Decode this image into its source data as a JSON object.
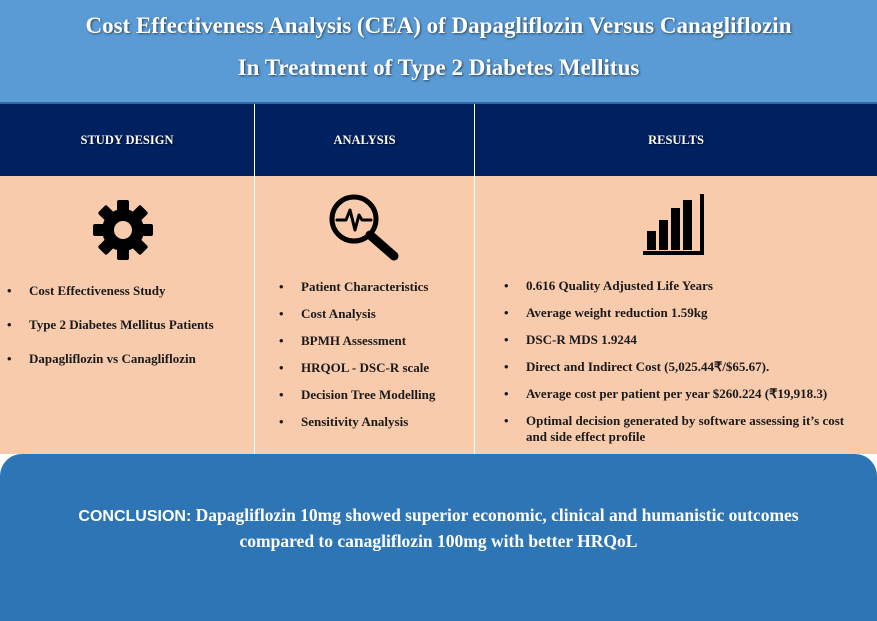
{
  "title": {
    "line1": "Cost Effectiveness Analysis (CEA) of Dapagliflozin Versus Canagliflozin",
    "line2": "In Treatment of Type 2 Diabetes Mellitus"
  },
  "columns": [
    {
      "header": "STUDY DESIGN",
      "icon": "gear-icon",
      "bullet": "•",
      "items": [
        "Cost Effectiveness Study",
        "Type 2 Diabetes Mellitus Patients",
        "Dapagliflozin vs Canagliflozin"
      ]
    },
    {
      "header": "ANALYSIS",
      "icon": "magnifier-pulse-icon",
      "bullet": "•",
      "items": [
        "Patient Characteristics",
        "Cost Analysis",
        "BPMH Assessment",
        "HRQOL - DSC-R scale",
        "Decision Tree Modelling",
        "Sensitivity Analysis"
      ]
    },
    {
      "header": "RESULTS",
      "icon": "bar-chart-icon",
      "bullet": "•",
      "items": [
        "0.616 Quality Adjusted Life Years",
        "Average weight reduction 1.59kg",
        "DSC-R MDS 1.9244",
        "Direct and Indirect Cost (5,025.44₹/$65.67).",
        "Average cost per patient per year $260.224 (₹19,918.3)",
        "Optimal decision generated by software assessing it’s cost and side effect profile"
      ]
    }
  ],
  "conclusion": {
    "label": "CONCLUSION:",
    "line1": " Dapagliflozin 10mg showed superior economic, clinical and humanistic outcomes",
    "line2": "compared to canagliflozin 100mg with better HRQoL"
  },
  "colors": {
    "title_bg": "#5b9bd5",
    "header_bg": "#002060",
    "body_bg": "#f8cbad",
    "conclusion_bg": "#2e75b6"
  }
}
